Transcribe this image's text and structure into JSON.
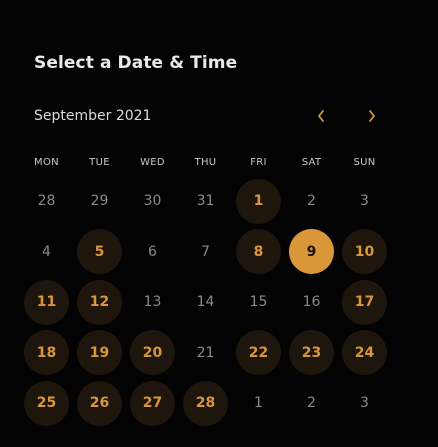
{
  "header": {
    "title": "Select a Date & Time"
  },
  "calendar": {
    "month_label": "September 2021",
    "weekdays": [
      "MON",
      "TUE",
      "WED",
      "THU",
      "FRI",
      "SAT",
      "SUN"
    ],
    "accent_color": "#d9973a",
    "weeks": [
      [
        {
          "label": "28",
          "state": "unavailable"
        },
        {
          "label": "29",
          "state": "unavailable"
        },
        {
          "label": "30",
          "state": "unavailable"
        },
        {
          "label": "31",
          "state": "unavailable"
        },
        {
          "label": "1",
          "state": "available"
        },
        {
          "label": "2",
          "state": "unavailable"
        },
        {
          "label": "3",
          "state": "unavailable"
        }
      ],
      [
        {
          "label": "4",
          "state": "unavailable"
        },
        {
          "label": "5",
          "state": "available"
        },
        {
          "label": "6",
          "state": "unavailable"
        },
        {
          "label": "7",
          "state": "unavailable"
        },
        {
          "label": "8",
          "state": "available"
        },
        {
          "label": "9",
          "state": "selected"
        },
        {
          "label": "10",
          "state": "available"
        }
      ],
      [
        {
          "label": "11",
          "state": "available"
        },
        {
          "label": "12",
          "state": "available"
        },
        {
          "label": "13",
          "state": "unavailable"
        },
        {
          "label": "14",
          "state": "unavailable"
        },
        {
          "label": "15",
          "state": "unavailable"
        },
        {
          "label": "16",
          "state": "unavailable"
        },
        {
          "label": "17",
          "state": "available"
        }
      ],
      [
        {
          "label": "18",
          "state": "available"
        },
        {
          "label": "19",
          "state": "available"
        },
        {
          "label": "20",
          "state": "available"
        },
        {
          "label": "21",
          "state": "unavailable"
        },
        {
          "label": "22",
          "state": "available"
        },
        {
          "label": "23",
          "state": "available"
        },
        {
          "label": "24",
          "state": "available"
        }
      ],
      [
        {
          "label": "25",
          "state": "available"
        },
        {
          "label": "26",
          "state": "available"
        },
        {
          "label": "27",
          "state": "available"
        },
        {
          "label": "28",
          "state": "available"
        },
        {
          "label": "1",
          "state": "unavailable"
        },
        {
          "label": "2",
          "state": "unavailable"
        },
        {
          "label": "3",
          "state": "unavailable"
        }
      ]
    ]
  },
  "icons": {
    "prev": "chevron-left-icon",
    "next": "chevron-right-icon"
  }
}
